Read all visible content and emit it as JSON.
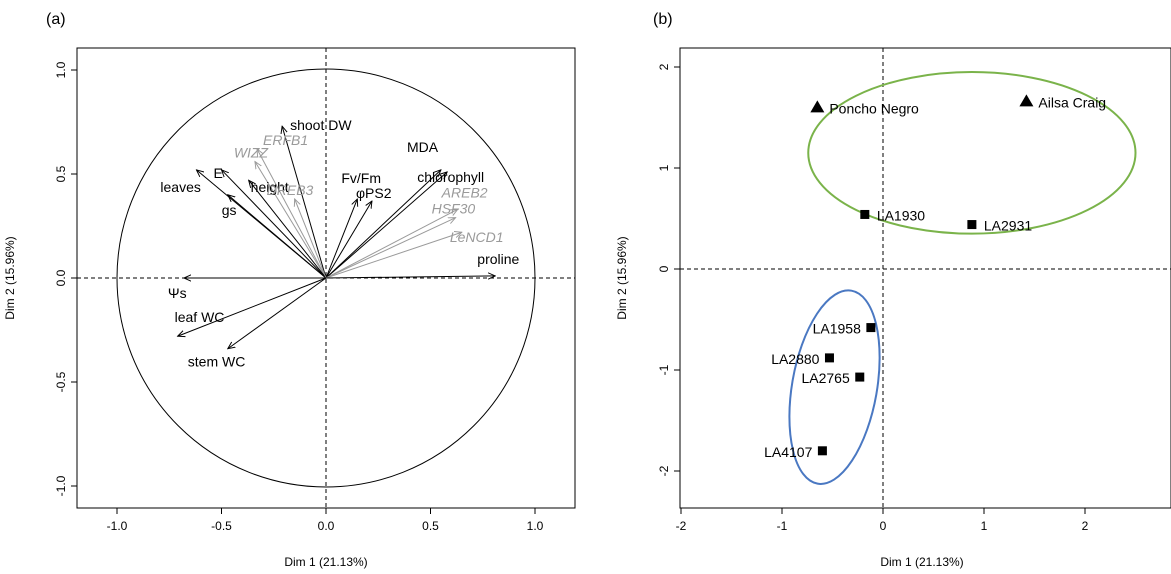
{
  "panels": [
    {
      "tag": "(a)"
    },
    {
      "tag": "(b)"
    }
  ],
  "chart_data": [
    {
      "type": "scatter",
      "subtype": "pca-variable-correlation-circle",
      "xlabel": "Dim 1 (21.13%)",
      "ylabel": "Dim 2 (15.96%)",
      "xlim": [
        -1.2,
        1.2
      ],
      "ylim": [
        -1.05,
        1.05
      ],
      "xticks": [
        "-1.0",
        "-0.5",
        "0.0",
        "0.5",
        "1.0"
      ],
      "yticks": [
        "-1.0",
        "-0.5",
        "0.0",
        "0.5",
        "1.0"
      ],
      "circle_radius": 1,
      "reference_lines": [
        0,
        0
      ],
      "colors": {
        "black": "#000000",
        "gray": "#9a9a9a"
      },
      "vectors": [
        {
          "label": "shoot DW",
          "x": -0.21,
          "y": 0.73,
          "color": "black"
        },
        {
          "label": "ERFB1",
          "x": -0.33,
          "y": 0.62,
          "color": "gray"
        },
        {
          "label": "WIZZ",
          "x": -0.34,
          "y": 0.56,
          "color": "gray"
        },
        {
          "label": "height",
          "x": -0.37,
          "y": 0.47,
          "color": "black"
        },
        {
          "label": "E",
          "x": -0.5,
          "y": 0.52,
          "color": "black"
        },
        {
          "label": "leaves",
          "x": -0.62,
          "y": 0.52,
          "color": "black"
        },
        {
          "label": "gs",
          "x": -0.47,
          "y": 0.4,
          "color": "black"
        },
        {
          "label": "DREB3",
          "x": -0.15,
          "y": 0.38,
          "color": "gray"
        },
        {
          "label": "Fv/Fm",
          "x": 0.15,
          "y": 0.38,
          "color": "black"
        },
        {
          "label": "φPS2",
          "x": 0.22,
          "y": 0.37,
          "color": "black"
        },
        {
          "label": "MDA",
          "x": 0.55,
          "y": 0.52,
          "color": "black"
        },
        {
          "label": "chlorophyll",
          "x": 0.58,
          "y": 0.51,
          "color": "black"
        },
        {
          "label": "AREB2",
          "x": 0.63,
          "y": 0.33,
          "color": "gray"
        },
        {
          "label": "HSF30",
          "x": 0.62,
          "y": 0.29,
          "color": "gray"
        },
        {
          "label": "LeNCD1",
          "x": 0.65,
          "y": 0.22,
          "color": "gray"
        },
        {
          "label": "proline",
          "x": 0.81,
          "y": 0.01,
          "color": "black"
        },
        {
          "label": "Ψs",
          "x": -0.68,
          "y": 0.0,
          "color": "black"
        },
        {
          "label": "leaf WC",
          "x": -0.71,
          "y": -0.28,
          "color": "black"
        },
        {
          "label": "stem WC",
          "x": -0.47,
          "y": -0.34,
          "color": "black"
        }
      ]
    },
    {
      "type": "scatter",
      "subtype": "pca-individuals",
      "xlabel": "Dim 1 (21.13%)",
      "ylabel": "Dim 2 (15.96%)",
      "xlim": [
        -2,
        2.9
      ],
      "ylim": [
        -2.3,
        2.2
      ],
      "xticks": [
        "-2",
        "-1",
        "0",
        "1",
        "2"
      ],
      "yticks": [
        "-2",
        "-1",
        "0",
        "1",
        "2"
      ],
      "reference_lines": [
        0,
        0
      ],
      "colors": {
        "green": "#7ab34a",
        "blue": "#4a78c2",
        "point": "#000000"
      },
      "points": [
        {
          "label": "Poncho Negro",
          "x": -0.65,
          "y": 1.6,
          "marker": "triangle",
          "label_side": "right"
        },
        {
          "label": "Ailsa Craig",
          "x": 1.42,
          "y": 1.66,
          "marker": "triangle",
          "label_side": "right"
        },
        {
          "label": "LA1930",
          "x": -0.18,
          "y": 0.54,
          "marker": "square",
          "label_side": "right"
        },
        {
          "label": "LA2931",
          "x": 0.88,
          "y": 0.44,
          "marker": "square",
          "label_side": "right"
        },
        {
          "label": "LA1958",
          "x": -0.12,
          "y": -0.58,
          "marker": "square",
          "label_side": "left"
        },
        {
          "label": "LA2880",
          "x": -0.53,
          "y": -0.88,
          "marker": "square",
          "label_side": "left"
        },
        {
          "label": "LA2765",
          "x": -0.23,
          "y": -1.07,
          "marker": "square",
          "label_side": "left"
        },
        {
          "label": "LA4107",
          "x": -0.6,
          "y": -1.8,
          "marker": "square",
          "label_side": "left"
        }
      ],
      "ellipses": [
        {
          "group": "upper",
          "color": "green",
          "cx": 0.88,
          "cy": 1.15,
          "rx": 1.62,
          "ry": 0.8,
          "rotate_deg": 0
        },
        {
          "group": "lower",
          "color": "blue",
          "cx": -0.48,
          "cy": -1.17,
          "rx": 0.42,
          "ry": 0.97,
          "rotate_deg": 10
        }
      ]
    }
  ]
}
